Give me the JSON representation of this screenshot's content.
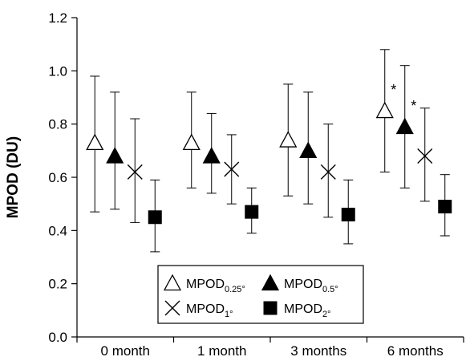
{
  "chart_data": {
    "type": "scatter",
    "title": "",
    "xlabel": "",
    "ylabel": "MPOD (DU)",
    "ylim": [
      0.0,
      1.2
    ],
    "yticks": [
      "0.0",
      "0.2",
      "0.4",
      "0.6",
      "0.8",
      "1.0",
      "1.2"
    ],
    "categories": [
      "0 month",
      "1 month",
      "3 months",
      "6 months"
    ],
    "series": [
      {
        "name": "MPOD0.25°",
        "label_main": "MPOD",
        "label_sub": "0.25°",
        "marker": "triangle-open",
        "values": [
          0.73,
          0.73,
          0.74,
          0.85
        ],
        "err_low": [
          0.47,
          0.56,
          0.53,
          0.62
        ],
        "err_high": [
          0.98,
          0.92,
          0.95,
          1.08
        ],
        "annotations": [
          "",
          "",
          "",
          "*"
        ]
      },
      {
        "name": "MPOD0.5°",
        "label_main": "MPOD",
        "label_sub": "0.5°",
        "marker": "triangle-filled",
        "values": [
          0.68,
          0.68,
          0.7,
          0.79
        ],
        "err_low": [
          0.48,
          0.54,
          0.5,
          0.56
        ],
        "err_high": [
          0.92,
          0.84,
          0.92,
          1.02
        ],
        "annotations": [
          "",
          "",
          "",
          "*"
        ]
      },
      {
        "name": "MPOD1°",
        "label_main": "MPOD",
        "label_sub": "1°",
        "marker": "x",
        "values": [
          0.62,
          0.63,
          0.62,
          0.68
        ],
        "err_low": [
          0.43,
          0.5,
          0.45,
          0.51
        ],
        "err_high": [
          0.82,
          0.76,
          0.8,
          0.86
        ],
        "annotations": [
          "",
          "",
          "",
          ""
        ]
      },
      {
        "name": "MPOD2°",
        "label_main": "MPOD",
        "label_sub": "2°",
        "marker": "square-filled",
        "values": [
          0.45,
          0.47,
          0.46,
          0.49
        ],
        "err_low": [
          0.32,
          0.39,
          0.35,
          0.38
        ],
        "err_high": [
          0.59,
          0.56,
          0.59,
          0.61
        ],
        "annotations": [
          "",
          "",
          "",
          ""
        ]
      }
    ],
    "grid": false,
    "legend_position": "bottom-right"
  }
}
